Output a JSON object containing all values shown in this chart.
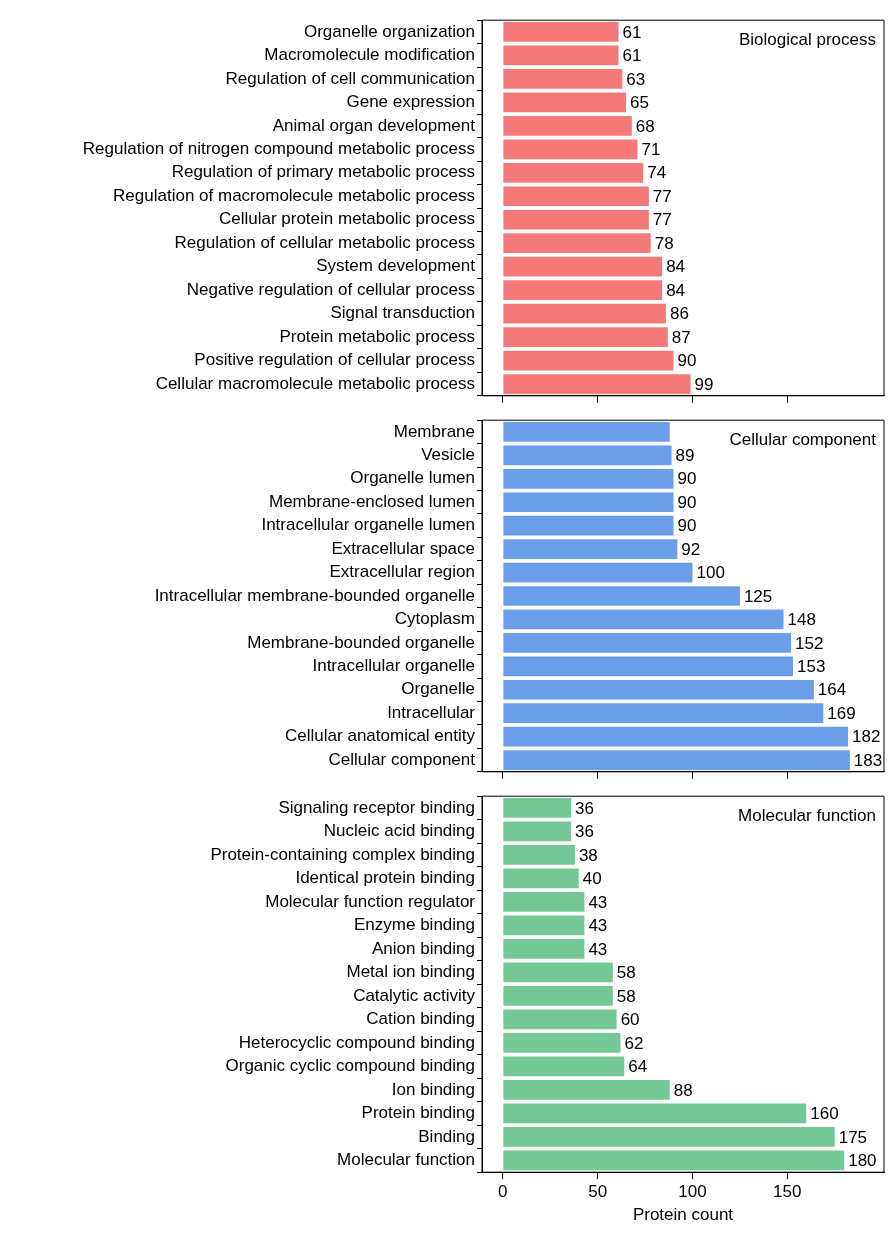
{
  "chart_data": [
    {
      "type": "bar",
      "orientation": "horizontal",
      "title": "Biological process",
      "categories": [
        "Organelle organization",
        "Macromolecule modification",
        "Regulation of cell communication",
        "Gene expression",
        "Animal organ development",
        "Regulation of nitrogen compound metabolic process",
        "Regulation of primary metabolic process",
        "Regulation of macromolecule metabolic process",
        "Cellular protein metabolic process",
        "Regulation of cellular metabolic process",
        "System development",
        "Negative regulation of cellular process",
        "Signal transduction",
        "Protein metabolic process",
        "Positive regulation of cellular process",
        "Cellular macromolecule metabolic process"
      ],
      "values": [
        61,
        61,
        63,
        65,
        68,
        71,
        74,
        77,
        77,
        78,
        84,
        84,
        86,
        87,
        90,
        99
      ],
      "color": "#f47a7a",
      "data_labels": true,
      "xlim": [
        -11,
        201
      ],
      "xticks": [
        0,
        50,
        100,
        150
      ],
      "tick_labels": "y"
    },
    {
      "type": "bar",
      "orientation": "horizontal",
      "title": "Cellular component",
      "categories": [
        "Membrane",
        "Vesicle",
        "Organelle lumen",
        "Membrane-enclosed lumen",
        "Intracellular organelle lumen",
        "Extracellular space",
        "Extracellular region",
        "Intracellular membrane-bounded organelle",
        "Cytoplasm",
        "Membrane-bounded organelle",
        "Intracellular organelle",
        "Organelle",
        "Intracellular",
        "Cellular anatomical entity",
        "Cellular component"
      ],
      "values": [
        88,
        89,
        90,
        90,
        90,
        92,
        100,
        125,
        148,
        152,
        153,
        164,
        169,
        182,
        183
      ],
      "value_labels": [
        null,
        "89",
        "90",
        "90",
        "90",
        "92",
        "100",
        "125",
        "148",
        "152",
        "153",
        "164",
        "169",
        "182",
        "183"
      ],
      "color": "#6a9ee8",
      "xlim": [
        -11,
        201
      ],
      "xticks": [
        0,
        50,
        100,
        150
      ],
      "tick_labels": "y"
    },
    {
      "type": "bar",
      "orientation": "horizontal",
      "title": "Molecular function",
      "xlabel": "Protein count",
      "categories": [
        "Signaling receptor binding",
        "Nucleic acid binding",
        "Protein-containing complex binding",
        "Identical protein binding",
        "Molecular function regulator",
        "Enzyme binding",
        "Anion binding",
        "Metal ion binding",
        "Catalytic activity",
        "Cation binding",
        "Heterocyclic compound binding",
        "Organic cyclic compound binding",
        "Ion binding",
        "Protein binding",
        "Binding",
        "Molecular function"
      ],
      "values": [
        36,
        36,
        38,
        40,
        43,
        43,
        43,
        58,
        58,
        60,
        62,
        64,
        88,
        160,
        175,
        180
      ],
      "color": "#74c896",
      "data_labels": true,
      "xlim": [
        -11,
        201
      ],
      "xticks": [
        0,
        50,
        100,
        150
      ]
    }
  ]
}
